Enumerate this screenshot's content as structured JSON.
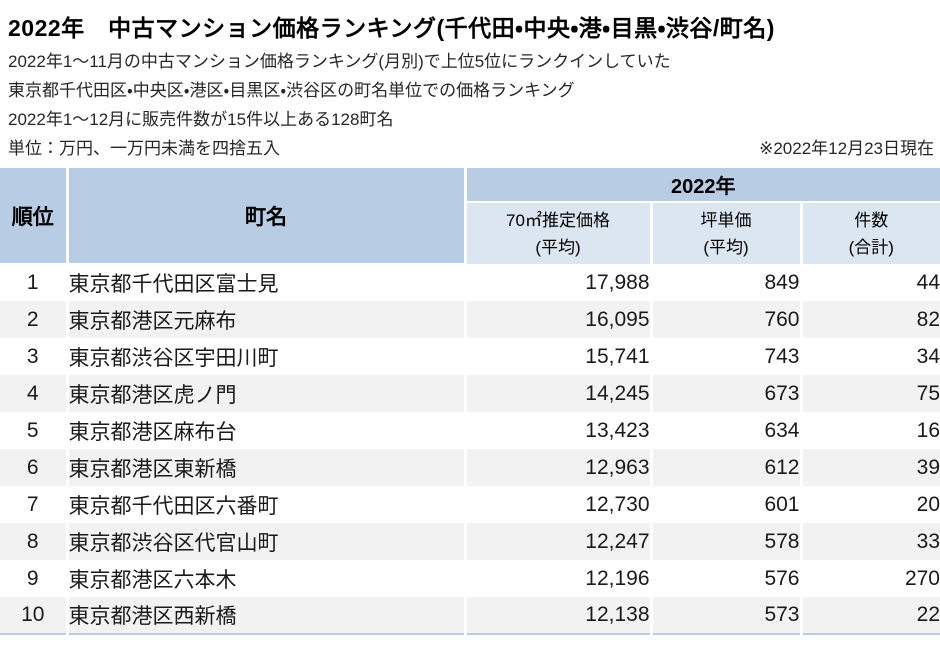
{
  "header": {
    "title": "2022年　中古マンション価格ランキング(千代田・中央・港・目黒・渋谷/町名)",
    "description_lines": [
      "2022年1〜11月の中古マンション価格ランキング(月別)で上位5位にランクインしていた",
      "東京都千代田区・中央区・港区・目黒区・渋谷区の町名単位での価格ランキング",
      "2022年1〜12月に販売件数が15件以上ある128町名"
    ],
    "unit_note": "単位：万円、一万円未満を四捨五入",
    "date_note": "※2022年12月23日現在"
  },
  "table": {
    "headers": {
      "rank": "順位",
      "town": "町名",
      "year_group": "2022年",
      "price_label": "70㎡推定価格",
      "price_sub": "(平均)",
      "tsubo_label": "坪単価",
      "tsubo_sub": "(平均)",
      "count_label": "件数",
      "count_sub": "(合計)"
    },
    "rows": [
      {
        "rank": "1",
        "town": "東京都千代田区富士見",
        "price": "17,988",
        "tsubo": "849",
        "count": "44"
      },
      {
        "rank": "2",
        "town": "東京都港区元麻布",
        "price": "16,095",
        "tsubo": "760",
        "count": "82"
      },
      {
        "rank": "3",
        "town": "東京都渋谷区宇田川町",
        "price": "15,741",
        "tsubo": "743",
        "count": "34"
      },
      {
        "rank": "4",
        "town": "東京都港区虎ノ門",
        "price": "14,245",
        "tsubo": "673",
        "count": "75"
      },
      {
        "rank": "5",
        "town": "東京都港区麻布台",
        "price": "13,423",
        "tsubo": "634",
        "count": "16"
      },
      {
        "rank": "6",
        "town": "東京都港区東新橋",
        "price": "12,963",
        "tsubo": "612",
        "count": "39"
      },
      {
        "rank": "7",
        "town": "東京都千代田区六番町",
        "price": "12,730",
        "tsubo": "601",
        "count": "20"
      },
      {
        "rank": "8",
        "town": "東京都渋谷区代官山町",
        "price": "12,247",
        "tsubo": "578",
        "count": "33"
      },
      {
        "rank": "9",
        "town": "東京都港区六本木",
        "price": "12,196",
        "tsubo": "576",
        "count": "270"
      },
      {
        "rank": "10",
        "town": "東京都港区西新橋",
        "price": "12,138",
        "tsubo": "573",
        "count": "22"
      }
    ]
  },
  "colors": {
    "header_blue": "#b8cce4",
    "subheader_blue": "#dce6f1",
    "row_stripe": "#f2f2f2",
    "table_bottom_border": "#b8cce4"
  }
}
